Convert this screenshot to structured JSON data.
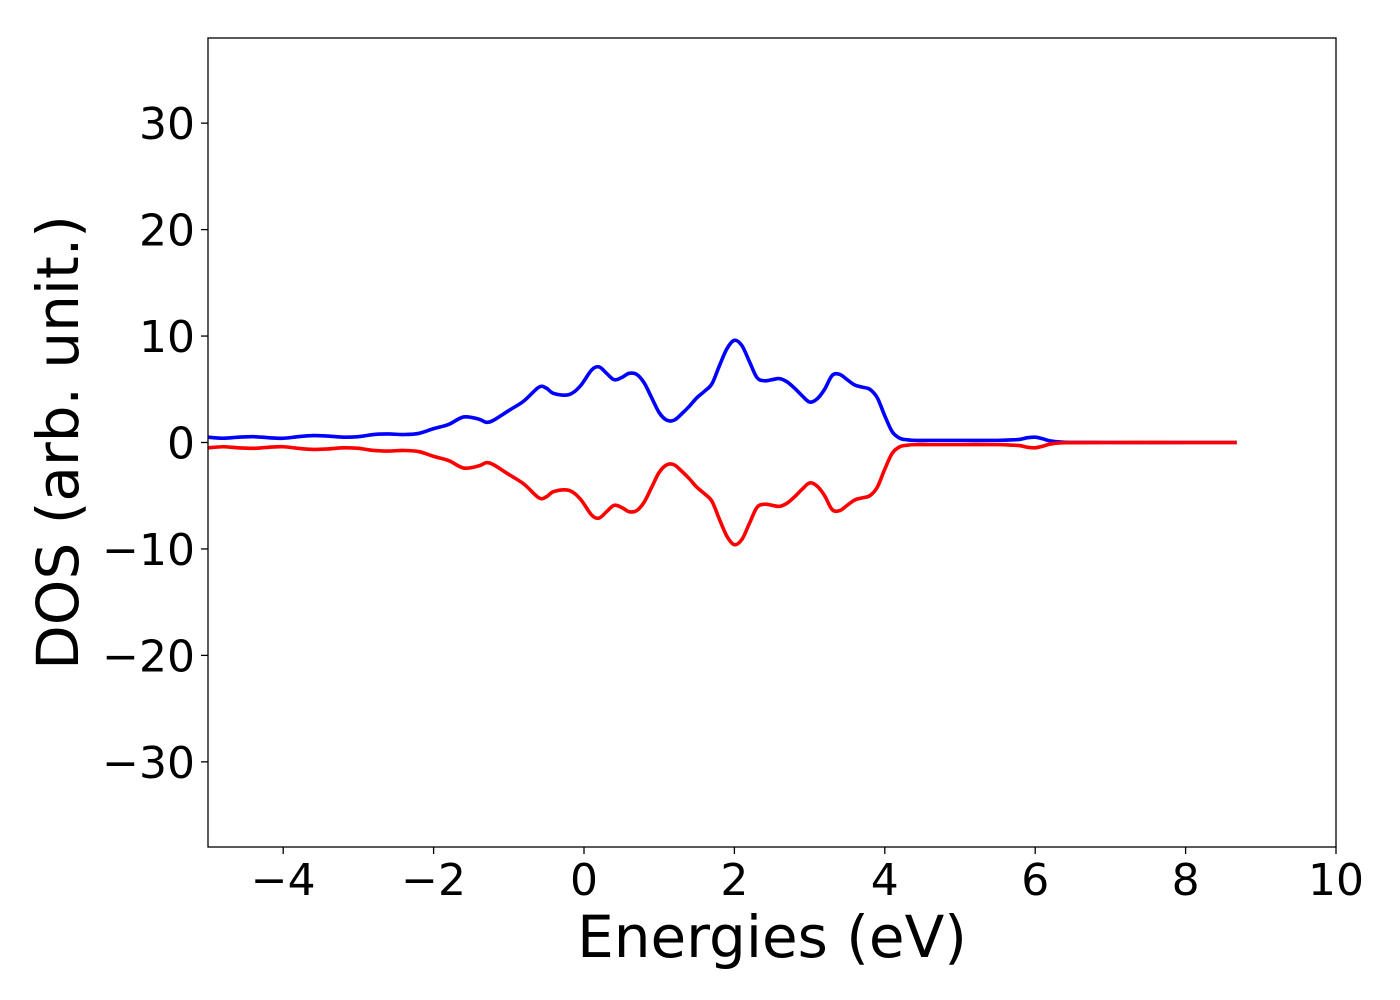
{
  "chart_data": {
    "type": "line",
    "title": "",
    "xlabel": "Energies (eV)",
    "ylabel": "DOS (arb. unit.)",
    "xlim": [
      -5,
      10
    ],
    "ylim": [
      -38,
      38
    ],
    "x_ticks": [
      {
        "value": -4,
        "label": "−4"
      },
      {
        "value": -2,
        "label": "−2"
      },
      {
        "value": 0,
        "label": "0"
      },
      {
        "value": 2,
        "label": "2"
      },
      {
        "value": 4,
        "label": "4"
      },
      {
        "value": 6,
        "label": "6"
      },
      {
        "value": 8,
        "label": "8"
      },
      {
        "value": 10,
        "label": "10"
      }
    ],
    "y_ticks": [
      {
        "value": -30,
        "label": "−30"
      },
      {
        "value": -20,
        "label": "−20"
      },
      {
        "value": -10,
        "label": "−10"
      },
      {
        "value": 0,
        "label": "0"
      },
      {
        "value": 10,
        "label": "10"
      },
      {
        "value": 20,
        "label": "20"
      },
      {
        "value": 30,
        "label": "30"
      }
    ],
    "grid": false,
    "legend": "none",
    "series": [
      {
        "color": "#0000ff",
        "x": [
          -5.0,
          -4.8,
          -4.6,
          -4.4,
          -4.2,
          -4.0,
          -3.8,
          -3.6,
          -3.4,
          -3.2,
          -3.0,
          -2.8,
          -2.6,
          -2.4,
          -2.2,
          -2.0,
          -1.8,
          -1.6,
          -1.4,
          -1.3,
          -1.2,
          -1.0,
          -0.8,
          -0.6,
          -0.5,
          -0.4,
          -0.2,
          -0.05,
          0.1,
          0.2,
          0.3,
          0.4,
          0.5,
          0.6,
          0.7,
          0.8,
          0.9,
          1.0,
          1.1,
          1.2,
          1.3,
          1.4,
          1.5,
          1.6,
          1.7,
          1.8,
          1.9,
          2.0,
          2.1,
          2.2,
          2.3,
          2.4,
          2.5,
          2.6,
          2.7,
          2.8,
          2.9,
          3.0,
          3.1,
          3.2,
          3.3,
          3.4,
          3.5,
          3.6,
          3.7,
          3.8,
          3.9,
          4.0,
          4.1,
          4.2,
          4.3,
          4.4,
          4.6,
          5.0,
          5.5,
          5.7,
          5.8,
          5.9,
          6.0,
          6.1,
          6.2,
          6.4,
          7.0,
          8.0,
          8.68
        ],
        "y": [
          0.5,
          0.4,
          0.5,
          0.55,
          0.45,
          0.4,
          0.55,
          0.65,
          0.6,
          0.5,
          0.55,
          0.75,
          0.8,
          0.75,
          0.85,
          1.3,
          1.7,
          2.4,
          2.2,
          1.9,
          2.1,
          3.0,
          3.9,
          5.2,
          5.1,
          4.6,
          4.5,
          5.3,
          6.8,
          7.1,
          6.5,
          5.9,
          6.1,
          6.5,
          6.4,
          5.6,
          4.2,
          2.8,
          2.1,
          2.1,
          2.7,
          3.4,
          4.2,
          4.8,
          5.5,
          7.2,
          8.8,
          9.6,
          9.1,
          7.6,
          6.1,
          5.8,
          5.9,
          6.0,
          5.7,
          5.1,
          4.4,
          3.8,
          4.1,
          5.0,
          6.3,
          6.4,
          5.9,
          5.4,
          5.2,
          5.0,
          4.2,
          2.5,
          1.0,
          0.4,
          0.25,
          0.2,
          0.2,
          0.2,
          0.2,
          0.25,
          0.3,
          0.45,
          0.5,
          0.35,
          0.15,
          0.02,
          0.0,
          0.0,
          0.0
        ]
      },
      {
        "color": "#ff0000",
        "x": [
          -5.0,
          -4.8,
          -4.6,
          -4.4,
          -4.2,
          -4.0,
          -3.8,
          -3.6,
          -3.4,
          -3.2,
          -3.0,
          -2.8,
          -2.6,
          -2.4,
          -2.2,
          -2.0,
          -1.8,
          -1.6,
          -1.4,
          -1.3,
          -1.2,
          -1.0,
          -0.8,
          -0.6,
          -0.5,
          -0.4,
          -0.2,
          -0.05,
          0.1,
          0.2,
          0.3,
          0.4,
          0.5,
          0.6,
          0.7,
          0.8,
          0.9,
          1.0,
          1.1,
          1.2,
          1.3,
          1.4,
          1.5,
          1.6,
          1.7,
          1.8,
          1.9,
          2.0,
          2.1,
          2.2,
          2.3,
          2.4,
          2.5,
          2.6,
          2.7,
          2.8,
          2.9,
          3.0,
          3.1,
          3.2,
          3.3,
          3.4,
          3.5,
          3.6,
          3.7,
          3.8,
          3.9,
          4.0,
          4.1,
          4.2,
          4.3,
          4.4,
          4.6,
          5.0,
          5.5,
          5.7,
          5.8,
          5.9,
          6.0,
          6.1,
          6.2,
          6.4,
          7.0,
          8.0,
          8.68
        ],
        "y": [
          -0.5,
          -0.4,
          -0.5,
          -0.55,
          -0.45,
          -0.4,
          -0.55,
          -0.65,
          -0.6,
          -0.5,
          -0.55,
          -0.75,
          -0.8,
          -0.75,
          -0.85,
          -1.3,
          -1.7,
          -2.4,
          -2.2,
          -1.9,
          -2.1,
          -3.0,
          -3.9,
          -5.2,
          -5.1,
          -4.6,
          -4.5,
          -5.3,
          -6.8,
          -7.1,
          -6.5,
          -5.9,
          -6.1,
          -6.5,
          -6.4,
          -5.6,
          -4.2,
          -2.8,
          -2.1,
          -2.1,
          -2.7,
          -3.4,
          -4.2,
          -4.8,
          -5.5,
          -7.2,
          -8.8,
          -9.6,
          -9.1,
          -7.6,
          -6.1,
          -5.8,
          -5.9,
          -6.0,
          -5.7,
          -5.1,
          -4.4,
          -3.8,
          -4.1,
          -5.0,
          -6.3,
          -6.4,
          -5.9,
          -5.4,
          -5.2,
          -5.0,
          -4.2,
          -2.5,
          -1.0,
          -0.4,
          -0.25,
          -0.2,
          -0.2,
          -0.2,
          -0.2,
          -0.25,
          -0.3,
          -0.45,
          -0.5,
          -0.35,
          -0.15,
          -0.02,
          0.0,
          0.0,
          0.0
        ]
      }
    ]
  }
}
